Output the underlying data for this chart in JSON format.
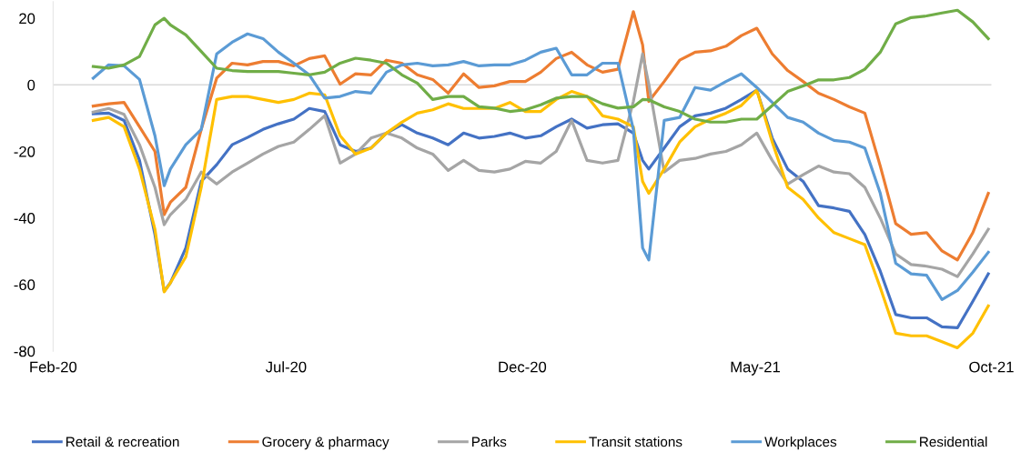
{
  "chart_data": {
    "type": "line",
    "x": [
      "2020-02-27",
      "2020-03-08",
      "2020-03-18",
      "2020-03-28",
      "2020-04-07",
      "2020-04-13",
      "2020-04-17",
      "2020-04-27",
      "2020-05-07",
      "2020-05-17",
      "2020-05-27",
      "2020-06-06",
      "2020-06-16",
      "2020-06-26",
      "2020-07-06",
      "2020-07-16",
      "2020-07-26",
      "2020-08-05",
      "2020-08-15",
      "2020-08-25",
      "2020-09-04",
      "2020-09-14",
      "2020-09-24",
      "2020-10-04",
      "2020-10-14",
      "2020-10-24",
      "2020-11-03",
      "2020-11-13",
      "2020-11-23",
      "2020-12-03",
      "2020-12-13",
      "2020-12-23",
      "2021-01-02",
      "2021-01-12",
      "2021-01-22",
      "2021-02-01",
      "2021-02-11",
      "2021-02-17",
      "2021-02-21",
      "2021-03-03",
      "2021-03-13",
      "2021-03-23",
      "2021-04-02",
      "2021-04-12",
      "2021-04-22",
      "2021-05-02",
      "2021-05-12",
      "2021-05-22",
      "2021-06-01",
      "2021-06-11",
      "2021-06-21",
      "2021-07-01",
      "2021-07-11",
      "2021-07-21",
      "2021-07-31",
      "2021-08-10",
      "2021-08-20",
      "2021-08-30",
      "2021-09-09",
      "2021-09-19",
      "2021-09-29"
    ],
    "series": [
      {
        "name": "Retail & recreation",
        "color": "#4472c4",
        "values": [
          -8.7,
          -8.5,
          -10.7,
          -22.7,
          -45,
          -62,
          -59.5,
          -49,
          -29,
          -24,
          -18,
          -15.8,
          -13.4,
          -11.7,
          -10.3,
          -7.1,
          -8,
          -18,
          -20,
          -19,
          -14.5,
          -12,
          -14.5,
          -16,
          -18,
          -14.5,
          -16,
          -15.5,
          -14.5,
          -16,
          -15.3,
          -12.6,
          -10.3,
          -13,
          -12,
          -11.7,
          -14.5,
          -22.7,
          -25.3,
          -19,
          -12.6,
          -9.3,
          -8.5,
          -7,
          -4.4,
          -1.6,
          -16,
          -25.3,
          -29,
          -36.3,
          -37,
          -38,
          -45,
          -56,
          -69,
          -70,
          -70,
          -72.7,
          -73,
          -65,
          -56.8
        ]
      },
      {
        "name": "Grocery & pharmacy",
        "color": "#ed7d31",
        "values": [
          -6.4,
          -5.7,
          -5.3,
          -12.6,
          -20,
          -39,
          -35.3,
          -30.8,
          -13.4,
          2,
          6.5,
          6,
          7,
          7,
          5.7,
          7.9,
          8.7,
          0.2,
          3.3,
          3,
          7.4,
          6.5,
          3,
          1.6,
          -2.5,
          3.3,
          -0.8,
          -0.3,
          1,
          1,
          3.8,
          7.9,
          9.8,
          6,
          3.8,
          4.7,
          22,
          12,
          -5,
          1,
          7.4,
          9.8,
          10.2,
          11.6,
          14.8,
          17,
          9.3,
          4.3,
          1,
          -2.5,
          -4.4,
          -6.6,
          -8.5,
          -24.4,
          -41.7,
          -44.9,
          -44.4,
          -49.9,
          -52.6,
          -44.4,
          -32.6
        ]
      },
      {
        "name": "Parks",
        "color": "#a5a5a5",
        "values": [
          -8.2,
          -7.1,
          -8.9,
          -18,
          -30.8,
          -42,
          -39,
          -34.4,
          -26.2,
          -29.8,
          -26.2,
          -23.5,
          -20.8,
          -18.5,
          -17.2,
          -13.4,
          -9.3,
          -23.5,
          -20.8,
          -16,
          -14.5,
          -16,
          -19,
          -20.8,
          -25.7,
          -22.7,
          -25.7,
          -26.2,
          -25.3,
          -23,
          -23.5,
          -20,
          -10.7,
          -22.7,
          -23.5,
          -22.7,
          -5,
          9.3,
          0.2,
          -26.2,
          -22.7,
          -22.1,
          -20.8,
          -20,
          -18,
          -14.5,
          -22.7,
          -29.8,
          -27,
          -24.4,
          -26.2,
          -26.7,
          -30.8,
          -40,
          -50.8,
          -54,
          -54.5,
          -55.4,
          -57.6,
          -50.8,
          -43.4
        ]
      },
      {
        "name": "Transit stations",
        "color": "#ffc000",
        "values": [
          -10.7,
          -9.8,
          -12.6,
          -25.3,
          -43.4,
          -62.2,
          -59.5,
          -51.7,
          -30.8,
          -4.4,
          -3.5,
          -3.5,
          -4.4,
          -5.3,
          -4.4,
          -2.5,
          -3,
          -15.3,
          -20.8,
          -19,
          -14.5,
          -11.2,
          -8.5,
          -7.5,
          -5.7,
          -7.1,
          -7.1,
          -7.1,
          -5.3,
          -8,
          -8,
          -4.4,
          -2,
          -3.5,
          -9.3,
          -10.3,
          -12.6,
          -29,
          -32.6,
          -25.3,
          -17.2,
          -12.6,
          -10.3,
          -8.5,
          -6.2,
          -1.6,
          -17.2,
          -30.8,
          -34.4,
          -40,
          -44.4,
          -46.2,
          -48,
          -60.9,
          -74.6,
          -75.4,
          -75.4,
          -77.2,
          -79,
          -74.6,
          -66.4
        ]
      },
      {
        "name": "Workplaces",
        "color": "#5b9bd5",
        "values": [
          2,
          6,
          5.7,
          1.6,
          -15.3,
          -30.3,
          -25.3,
          -18,
          -13.4,
          9.3,
          12.8,
          15.3,
          13.9,
          9.8,
          6.5,
          3,
          -4,
          -3.5,
          -2,
          -2.5,
          3.8,
          6,
          6.5,
          5.7,
          6,
          7,
          5.7,
          6,
          6,
          7.4,
          9.8,
          11,
          3,
          3,
          6.5,
          6.5,
          -13.4,
          -49,
          -52.6,
          -10.7,
          -9.8,
          -0.8,
          -1.6,
          1,
          3.3,
          -0.8,
          -5.3,
          -9.8,
          -11.2,
          -14.5,
          -16.7,
          -17.2,
          -19,
          -32.6,
          -53.6,
          -56.8,
          -57.2,
          -64.5,
          -61.8,
          -56.3,
          -50.3
        ]
      },
      {
        "name": "Residential",
        "color": "#70ad47",
        "values": [
          5.5,
          5,
          6,
          8.5,
          18,
          20,
          18,
          15,
          10,
          5,
          4.3,
          4,
          4,
          4,
          3.5,
          3,
          3.8,
          6.5,
          8,
          7.4,
          6.5,
          3,
          0.5,
          -4.4,
          -3.5,
          -3.5,
          -6.6,
          -7,
          -8,
          -7.5,
          -6,
          -4,
          -3.5,
          -3.5,
          -5.7,
          -7,
          -6.6,
          -4.4,
          -4.5,
          -6.6,
          -8,
          -10.3,
          -11.2,
          -11.2,
          -10.3,
          -10.3,
          -6.2,
          -2,
          -0.3,
          1.5,
          1.5,
          2.2,
          4.7,
          9.8,
          18.3,
          20.2,
          20.7,
          21.6,
          22.4,
          18.9,
          13.9
        ]
      }
    ],
    "xlim": [
      "2020-02-01",
      "2021-10-01"
    ],
    "xticks": [
      {
        "value": "2020-02-01",
        "label": "Feb-20"
      },
      {
        "value": "2020-07-01",
        "label": "Jul-20"
      },
      {
        "value": "2020-12-01",
        "label": "Dec-20"
      },
      {
        "value": "2021-05-01",
        "label": "May-21"
      },
      {
        "value": "2021-10-01",
        "label": "Oct-21"
      }
    ],
    "ylim": [
      -80,
      25
    ],
    "yticks": [
      -80,
      -60,
      -40,
      -20,
      0,
      20
    ],
    "ref_lines": [
      {
        "axis": "y",
        "value": 0,
        "color": "#d9d9d9"
      }
    ],
    "grid": false,
    "legend": "bottom",
    "marker": "none",
    "line_style": "solid"
  }
}
